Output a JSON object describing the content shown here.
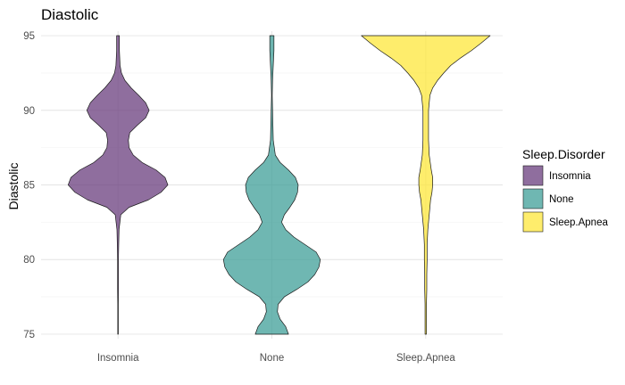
{
  "chart_data": {
    "type": "violin",
    "title": "Diastolic",
    "xlabel": "",
    "ylabel": "Diastolic",
    "ylim": [
      74.7,
      95.3
    ],
    "yticks": [
      75,
      80,
      85,
      90,
      95
    ],
    "categories": [
      "Insomnia",
      "None",
      "Sleep.Apnea"
    ],
    "grid": true,
    "legend": {
      "title": "Sleep.Disorder",
      "position": "right",
      "entries": [
        "Insomnia",
        "None",
        "Sleep.Apnea"
      ]
    },
    "colors": {
      "Insomnia": "#6a3d7e",
      "None": "#3f9f98",
      "Sleep.Apnea": "#fde73b"
    },
    "series": [
      {
        "name": "Insomnia",
        "density": [
          [
            75.0,
            0.4
          ],
          [
            76.0,
            0.4
          ],
          [
            77.0,
            0.4
          ],
          [
            78.0,
            0.6
          ],
          [
            79.0,
            0.6
          ],
          [
            80.0,
            0.6
          ],
          [
            81.0,
            1.0
          ],
          [
            82.0,
            1.5
          ],
          [
            83.0,
            4.0
          ],
          [
            83.5,
            16.0
          ],
          [
            84.0,
            44.0
          ],
          [
            84.5,
            62.0
          ],
          [
            85.0,
            72.0
          ],
          [
            85.5,
            68.0
          ],
          [
            86.0,
            55.0
          ],
          [
            86.5,
            35.0
          ],
          [
            87.0,
            22.0
          ],
          [
            87.5,
            16.0
          ],
          [
            88.0,
            15.0
          ],
          [
            88.5,
            17.0
          ],
          [
            89.0,
            28.0
          ],
          [
            89.5,
            40.0
          ],
          [
            90.0,
            45.0
          ],
          [
            90.5,
            40.0
          ],
          [
            91.0,
            30.0
          ],
          [
            91.5,
            19.0
          ],
          [
            92.0,
            10.0
          ],
          [
            92.5,
            5.0
          ],
          [
            93.0,
            3.0
          ],
          [
            94.0,
            2.0
          ],
          [
            95.0,
            2.0
          ]
        ]
      },
      {
        "name": "None",
        "density": [
          [
            75.0,
            24.0
          ],
          [
            75.5,
            20.0
          ],
          [
            76.0,
            12.0
          ],
          [
            76.5,
            8.0
          ],
          [
            77.0,
            9.0
          ],
          [
            77.5,
            18.0
          ],
          [
            78.0,
            36.0
          ],
          [
            78.5,
            52.0
          ],
          [
            79.0,
            62.0
          ],
          [
            79.5,
            68.0
          ],
          [
            80.0,
            70.0
          ],
          [
            80.5,
            64.0
          ],
          [
            81.0,
            48.0
          ],
          [
            81.5,
            32.0
          ],
          [
            82.0,
            20.0
          ],
          [
            82.5,
            14.0
          ],
          [
            83.0,
            18.0
          ],
          [
            83.5,
            26.0
          ],
          [
            84.0,
            33.0
          ],
          [
            84.5,
            37.0
          ],
          [
            85.0,
            38.0
          ],
          [
            85.5,
            34.0
          ],
          [
            86.0,
            24.0
          ],
          [
            86.5,
            12.0
          ],
          [
            87.0,
            5.0
          ],
          [
            88.0,
            2.0
          ],
          [
            89.0,
            1.5
          ],
          [
            90.0,
            1.0
          ],
          [
            91.0,
            0.5
          ],
          [
            92.0,
            1.0
          ],
          [
            93.0,
            2.0
          ],
          [
            94.0,
            3.0
          ],
          [
            95.0,
            3.0
          ]
        ]
      },
      {
        "name": "Sleep.Apnea",
        "density": [
          [
            75.0,
            1.0
          ],
          [
            76.0,
            1.0
          ],
          [
            77.0,
            1.0
          ],
          [
            78.0,
            1.5
          ],
          [
            79.0,
            1.5
          ],
          [
            80.0,
            2.0
          ],
          [
            81.0,
            2.0
          ],
          [
            82.0,
            3.0
          ],
          [
            83.0,
            5.0
          ],
          [
            84.0,
            7.0
          ],
          [
            84.5,
            9.0
          ],
          [
            85.0,
            10.0
          ],
          [
            85.5,
            10.0
          ],
          [
            86.0,
            8.0
          ],
          [
            87.0,
            5.0
          ],
          [
            88.0,
            4.0
          ],
          [
            89.0,
            4.0
          ],
          [
            90.0,
            4.0
          ],
          [
            91.0,
            6.0
          ],
          [
            91.5,
            10.0
          ],
          [
            92.0,
            17.0
          ],
          [
            92.5,
            26.0
          ],
          [
            93.0,
            36.0
          ],
          [
            93.5,
            50.0
          ],
          [
            94.0,
            66.0
          ],
          [
            94.5,
            80.0
          ],
          [
            95.0,
            93.0
          ]
        ]
      }
    ]
  }
}
